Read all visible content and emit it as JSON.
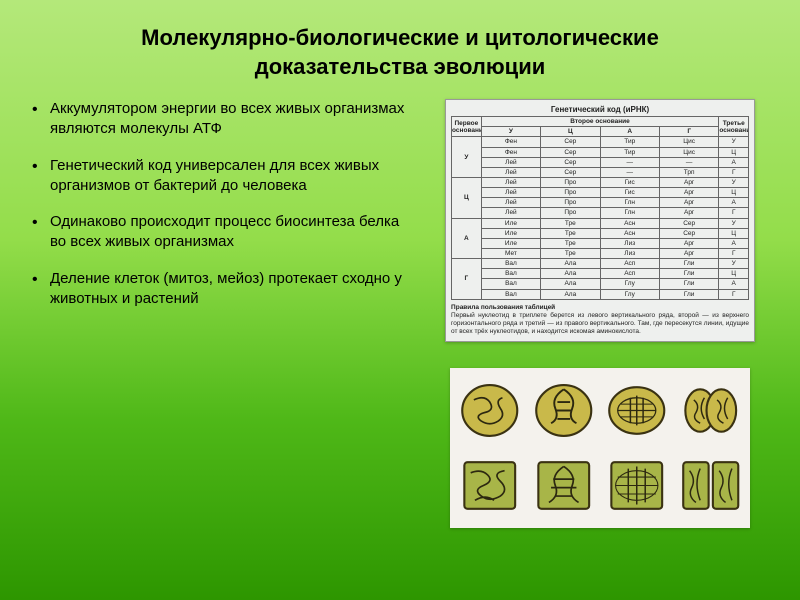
{
  "title": "Молекулярно-биологические и цитологические доказательства эволюции",
  "bullets": [
    "Аккумулятором энергии во всех живых организмах являются молекулы АТФ",
    "Генетический код универсален для всех живых организмов от бактерий до человека",
    "Одинаково происходит процесс биосинтеза белка во всех живых организмах",
    "Деление клеток (митоз, мейоз) протекает сходно у животных и растений"
  ],
  "genetic_table": {
    "title": "Генетический код (иРНК)",
    "header_first": "Первое основание",
    "header_second": "Второе основание",
    "header_third": "Третье основание",
    "second_cols": [
      "У",
      "Ц",
      "А",
      "Г"
    ],
    "first_bases": [
      "У",
      "Ц",
      "А",
      "Г"
    ],
    "third_bases": [
      "У",
      "Ц",
      "А",
      "Г"
    ],
    "cells": [
      [
        [
          "Фен",
          "Фен",
          "Лей",
          "Лей"
        ],
        [
          "Сер",
          "Сер",
          "Сер",
          "Сер"
        ],
        [
          "Тир",
          "Тир",
          "—",
          "—"
        ],
        [
          "Цис",
          "Цис",
          "—",
          "Трп"
        ]
      ],
      [
        [
          "Лей",
          "Лей",
          "Лей",
          "Лей"
        ],
        [
          "Про",
          "Про",
          "Про",
          "Про"
        ],
        [
          "Гис",
          "Гис",
          "Глн",
          "Глн"
        ],
        [
          "Арг",
          "Арг",
          "Арг",
          "Арг"
        ]
      ],
      [
        [
          "Иле",
          "Иле",
          "Иле",
          "Мет"
        ],
        [
          "Тре",
          "Тре",
          "Тре",
          "Тре"
        ],
        [
          "Асн",
          "Асн",
          "Лиз",
          "Лиз"
        ],
        [
          "Сер",
          "Сер",
          "Арг",
          "Арг"
        ]
      ],
      [
        [
          "Вал",
          "Вал",
          "Вал",
          "Вал"
        ],
        [
          "Ала",
          "Ала",
          "Ала",
          "Ала"
        ],
        [
          "Асп",
          "Асп",
          "Глу",
          "Глу"
        ],
        [
          "Гли",
          "Гли",
          "Гли",
          "Гли"
        ]
      ]
    ],
    "caption_title": "Правила пользования таблицей",
    "caption": "Первый нуклеотид в триплете берется из левого вертикального ряда, второй — из верхнего горизонтального ряда и третий — из правого вертикального. Там, где пересекутся линии, идущие от всех трёх нуклеотидов, и находится искомая аминокислота."
  },
  "cells_figure": {
    "type": "illustration-grid",
    "rows": 2,
    "columns": 4,
    "background": "#f4f2ed",
    "row1_shape": "round",
    "row2_shape": "square",
    "cell_fill": "#c9b94a",
    "cell_fill_dark": "#a89838",
    "cell_stroke": "#3a3212",
    "chrom_color": "#2c2810"
  },
  "colors": {
    "bg_top": "#b4e87a",
    "bg_bottom": "#2d9600",
    "text": "#000000"
  }
}
